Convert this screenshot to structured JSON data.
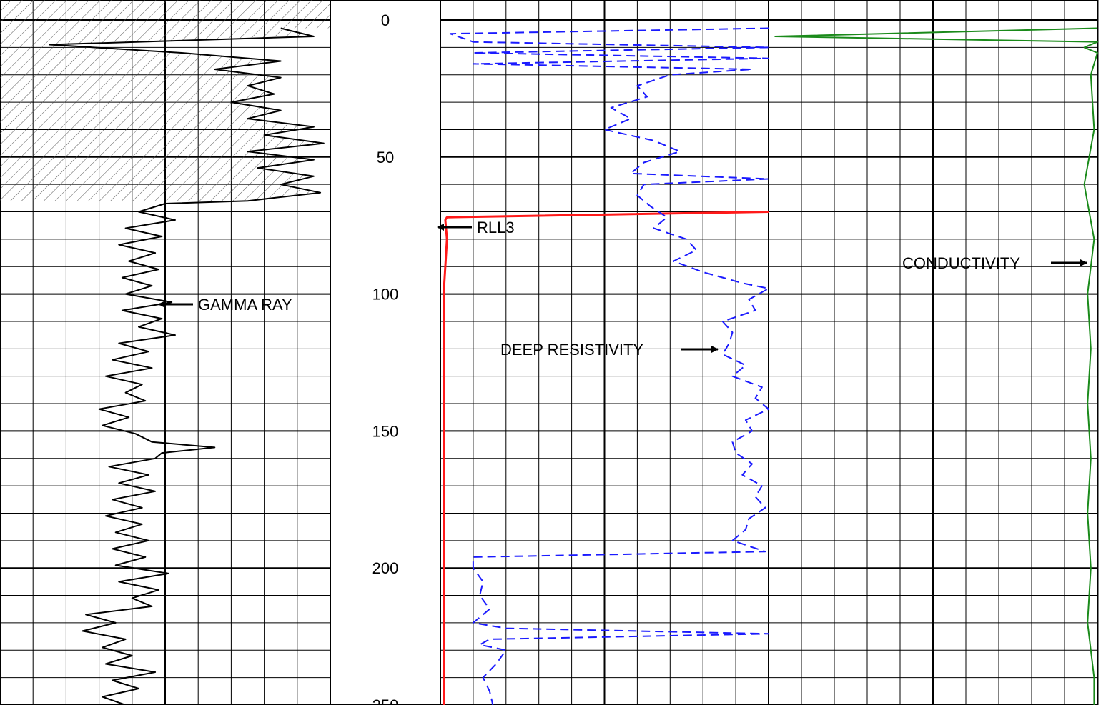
{
  "chart_data": {
    "type": "line",
    "title": "",
    "depth_axis": {
      "ticks": [
        0,
        50,
        100,
        150,
        200,
        250
      ],
      "range": [
        0,
        250
      ],
      "direction": "down"
    },
    "grid": true,
    "colors": {
      "gamma_ray": "#000000",
      "deep_resistivity": "#1a1aff",
      "rll3": "#ff1a1a",
      "conductivity": "#1a8a1a",
      "grid": "#000000",
      "hatch": "#555555"
    },
    "labels": {
      "gamma_ray": "GAMMA RAY",
      "rll3": "RLL3",
      "deep_resistivity": "DEEP RESISTIVITY",
      "conductivity": "CONDUCTIVITY"
    },
    "series": [
      {
        "name": "GAMMA RAY",
        "track": 1,
        "scale": [
          0,
          10
        ],
        "line_style": "solid",
        "shading": "hatched above depth 66",
        "depth": [
          3,
          6,
          9,
          12,
          15,
          18,
          21,
          24,
          27,
          30,
          33,
          36,
          39,
          42,
          45,
          48,
          51,
          54,
          57,
          60,
          63,
          66,
          67,
          70,
          73,
          76,
          79,
          82,
          85,
          88,
          91,
          94,
          97,
          100,
          103,
          106,
          109,
          112,
          115,
          118,
          121,
          124,
          127,
          130,
          133,
          136,
          139,
          142,
          145,
          148,
          151,
          154,
          156,
          158,
          160,
          163,
          166,
          169,
          172,
          175,
          178,
          181,
          184,
          187,
          190,
          193,
          196,
          199,
          202,
          205,
          208,
          211,
          214,
          217,
          220,
          223,
          226,
          229,
          232,
          235,
          238,
          241,
          244,
          247,
          250
        ],
        "values": [
          8.5,
          9.5,
          1.5,
          5.5,
          8.5,
          6.5,
          8.5,
          7.5,
          8.3,
          7,
          8.5,
          7.5,
          9.5,
          8,
          9.8,
          7.5,
          9.5,
          7.8,
          9.5,
          8.5,
          9.7,
          7.5,
          5,
          4.2,
          5.3,
          3.8,
          4.9,
          3.6,
          4.7,
          3.9,
          4.8,
          3.7,
          4.6,
          3.8,
          5.2,
          3.7,
          4.9,
          4.2,
          5.3,
          3.6,
          4.5,
          3.4,
          4.6,
          3.2,
          4.3,
          3.8,
          4.4,
          3.0,
          3.9,
          3.1,
          4.1,
          4.6,
          6.5,
          4.9,
          4.7,
          3.3,
          4.5,
          3.6,
          4.7,
          3.4,
          4.3,
          3.2,
          4.3,
          3.5,
          4.5,
          3.4,
          4.4,
          3.5,
          5.1,
          3.6,
          4.8,
          4.0,
          4.6,
          2.6,
          3.5,
          2.5,
          3.8,
          3.1,
          4.0,
          3.2,
          4.7,
          3.4,
          4.2,
          3.1,
          3.8
        ]
      },
      {
        "name": "RLL3",
        "track": 3,
        "line_style": "solid",
        "depth": [
          70,
          72,
          73,
          80,
          100,
          150,
          200,
          250
        ],
        "values": [
          10,
          0.2,
          0.15,
          0.2,
          0.1,
          0.1,
          0.1,
          0.1
        ]
      },
      {
        "name": "DEEP RESISTIVITY",
        "track": 3,
        "line_style": "dashed",
        "depth": [
          3,
          5,
          8,
          10,
          12,
          14,
          16,
          18,
          20,
          24,
          28,
          32,
          36,
          40,
          44,
          48,
          52,
          56,
          58,
          60,
          64,
          68,
          72,
          76,
          80,
          84,
          88,
          92,
          96,
          98,
          102,
          106,
          110,
          114,
          118,
          122,
          126,
          130,
          134,
          138,
          142,
          146,
          150,
          154,
          158,
          162,
          166,
          170,
          174,
          178,
          182,
          186,
          190,
          194,
          196,
          200,
          205,
          210,
          215,
          220,
          222,
          224,
          226,
          228,
          230,
          235,
          240,
          245,
          250
        ],
        "values": [
          10,
          0.3,
          1.0,
          10,
          1.0,
          10,
          1.0,
          9.5,
          7,
          6,
          6.3,
          5.2,
          5.8,
          5.0,
          6.5,
          7.3,
          6.2,
          5.8,
          10,
          6.2,
          6.0,
          6.4,
          6.9,
          6.5,
          7.5,
          7.8,
          7.1,
          8.0,
          9.2,
          10,
          9.4,
          9.6,
          8.6,
          8.9,
          8.8,
          8.6,
          9.3,
          8.9,
          9.8,
          9.6,
          10,
          9.3,
          9.5,
          8.9,
          9.0,
          9.5,
          9.2,
          9.8,
          9.6,
          9.9,
          9.4,
          9.3,
          8.9,
          9.9,
          1.0,
          1.0,
          1.3,
          1.2,
          1.5,
          1.0,
          2.0,
          10,
          1.5,
          1.2,
          2.0,
          1.7,
          1.3,
          1.5,
          1.6
        ]
      },
      {
        "name": "CONDUCTIVITY",
        "track": 4,
        "line_style": "solid",
        "depth": [
          3,
          6,
          8,
          10,
          12,
          20,
          40,
          60,
          80,
          100,
          120,
          140,
          160,
          180,
          200,
          220,
          240,
          250
        ],
        "values": [
          10,
          0.2,
          10,
          9.6,
          10,
          9.8,
          9.9,
          9.6,
          9.9,
          9.7,
          9.8,
          9.7,
          9.8,
          9.7,
          9.8,
          9.7,
          9.9,
          9.9
        ]
      }
    ]
  }
}
